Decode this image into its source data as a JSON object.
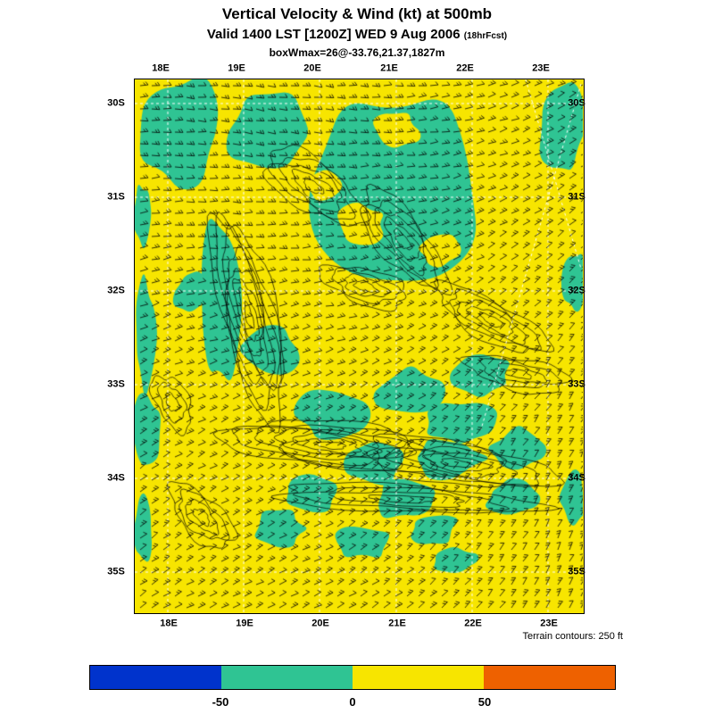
{
  "title": "Vertical Velocity & Wind (kt) at 500mb",
  "subtitle": {
    "main": "Valid 1400 LST [1200Z] WED 9 Aug 2006",
    "suffix": "(18hrFcst)"
  },
  "annotation": "boxWmax=26@-33.76,21.37,1827m",
  "footnote": "Terrain contours: 250 ft",
  "axes": {
    "lon_labels": [
      "18E",
      "19E",
      "20E",
      "21E",
      "22E",
      "23E"
    ],
    "lat_labels": [
      "30S",
      "31S",
      "32S",
      "33S",
      "34S",
      "35S"
    ]
  },
  "colorbar": {
    "tick_labels": [
      "-50",
      "0",
      "50"
    ],
    "segments": [
      {
        "name": "blue",
        "color": "#0033cc"
      },
      {
        "name": "green",
        "color": "#2fc493"
      },
      {
        "name": "yellow",
        "color": "#f7e500"
      },
      {
        "name": "orange",
        "color": "#ee6100"
      }
    ]
  },
  "map": {
    "colors": {
      "positive_fill": "#f7e500",
      "negative_fill": "#2fc493",
      "contour": "#000000",
      "grid": "#ffffff",
      "barb": "#000000"
    }
  }
}
